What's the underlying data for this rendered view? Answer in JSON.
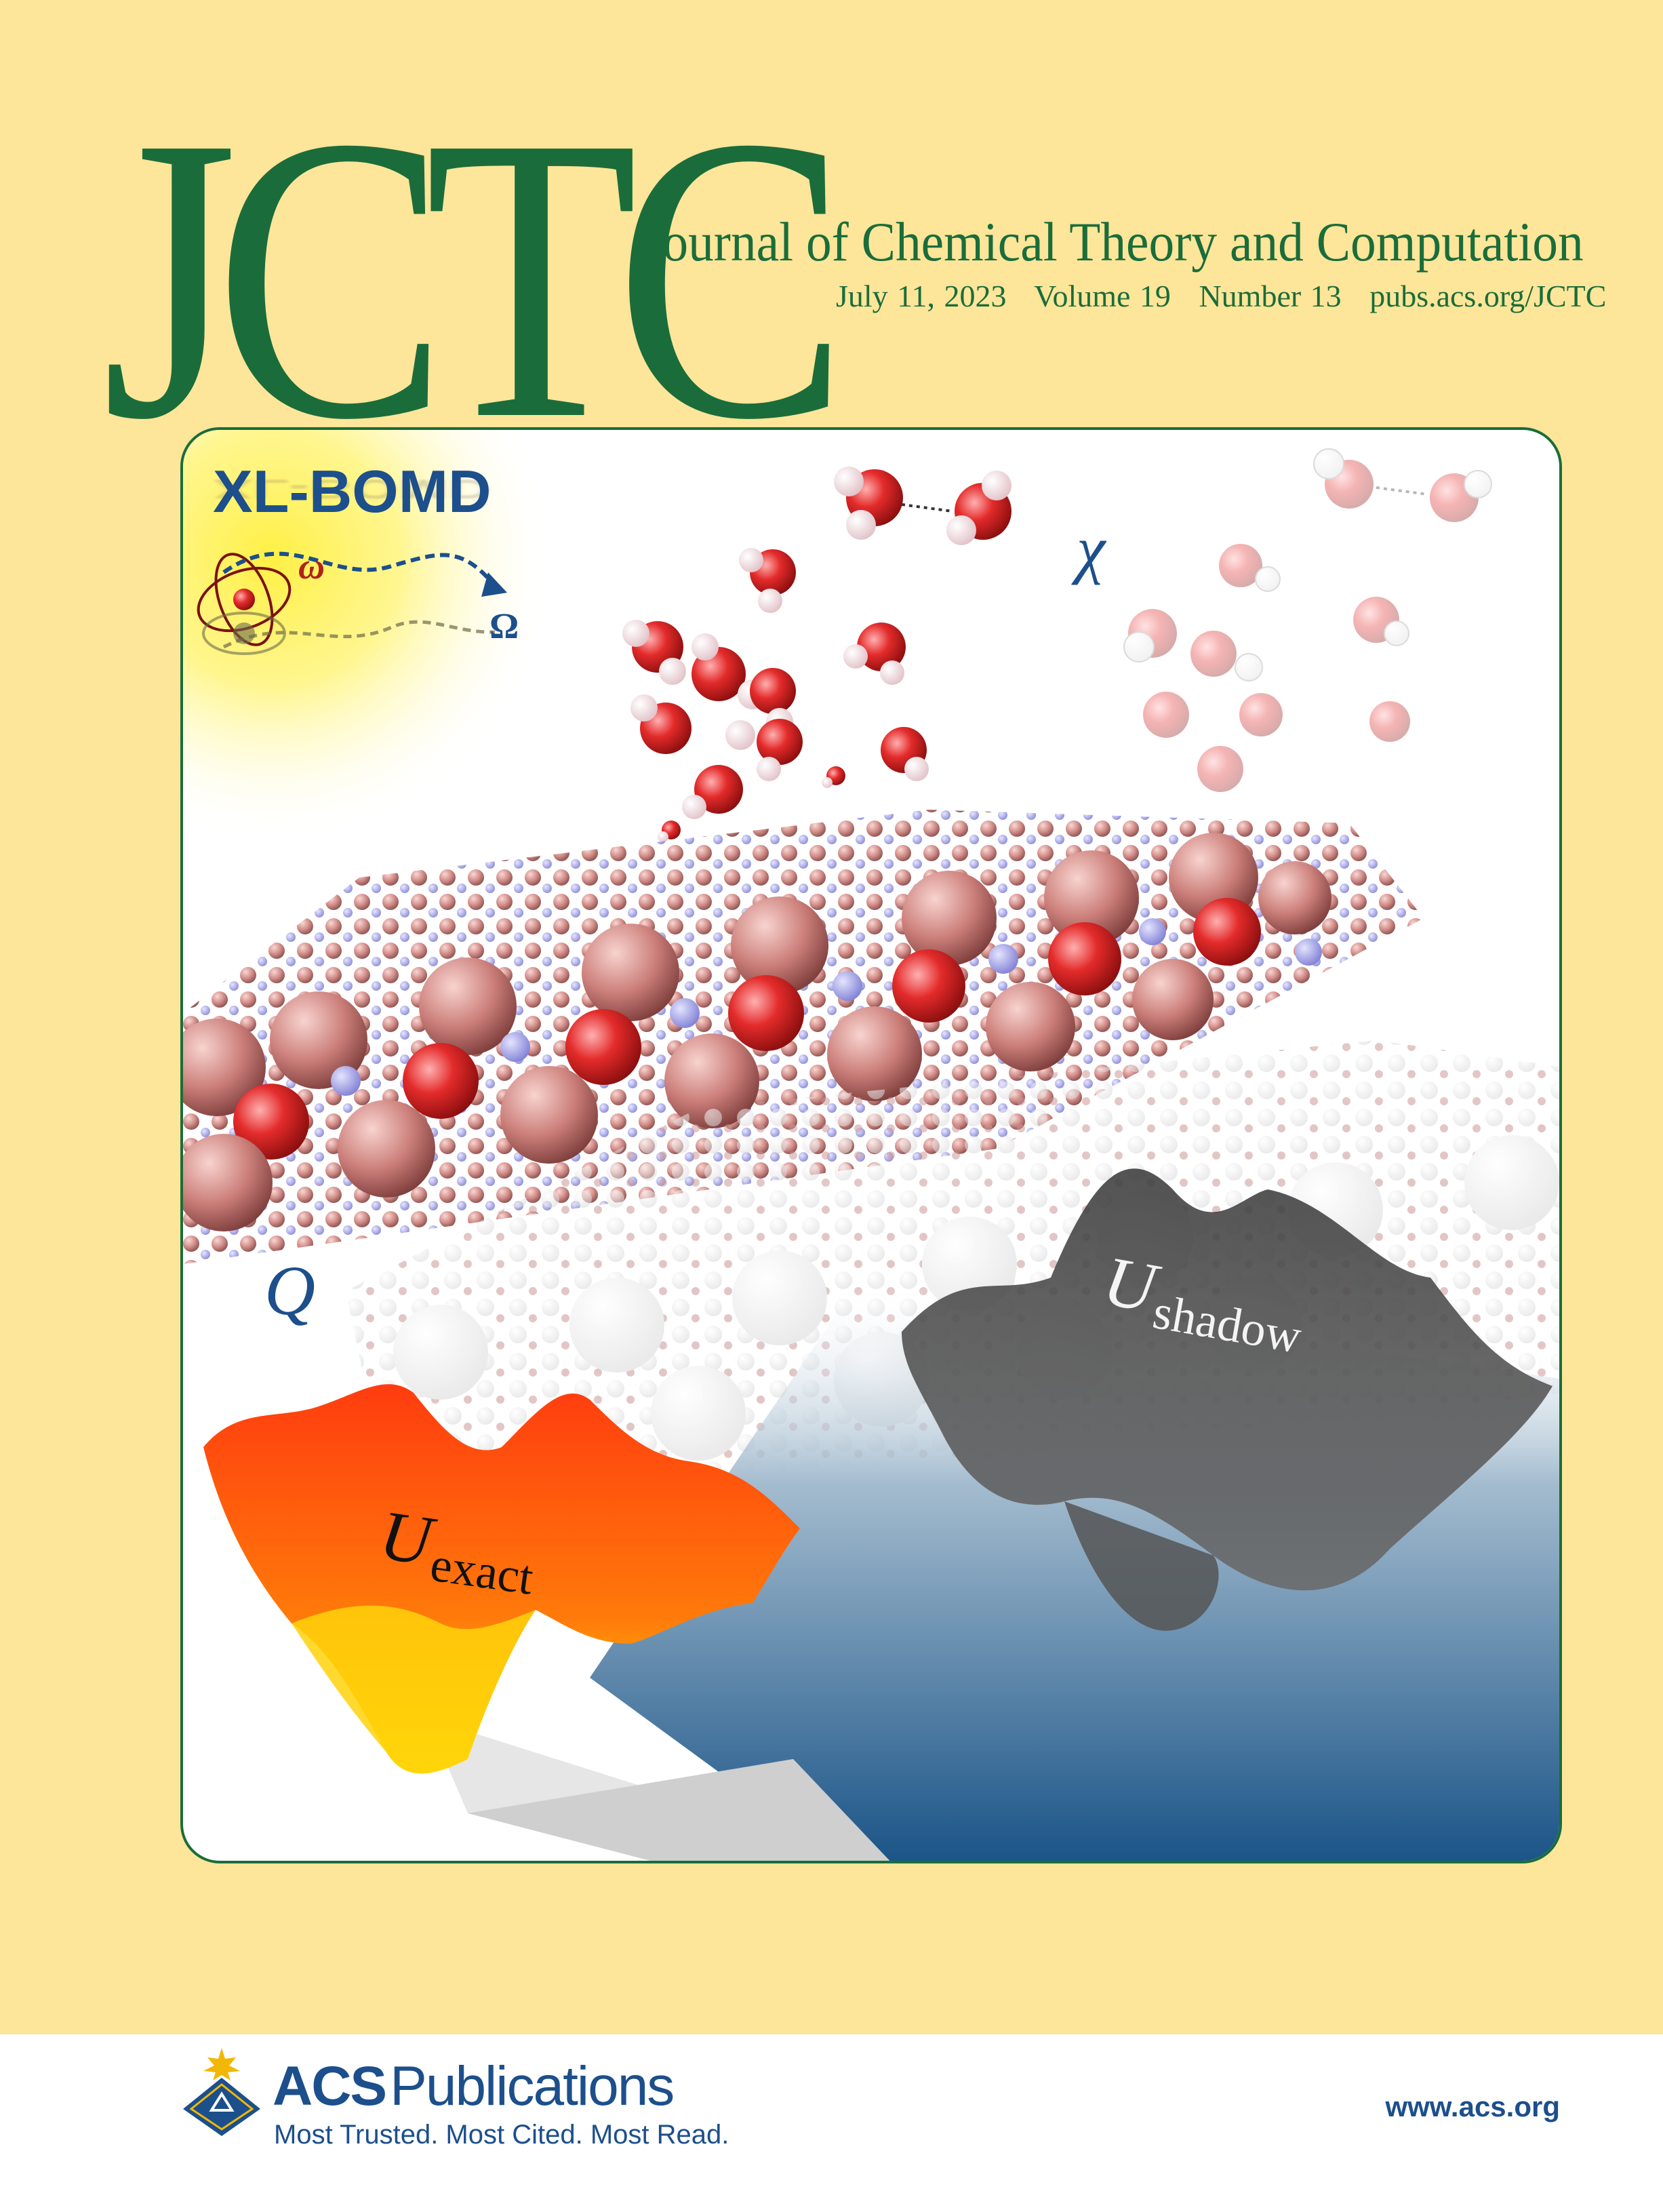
{
  "masthead": {
    "logo": "JCTC",
    "journal_title": "Journal of Chemical Theory and Computation",
    "issue": {
      "date": "July 11, 2023",
      "volume": "Volume 19",
      "number": "Number 13",
      "url": "pubs.acs.org/JCTC"
    }
  },
  "cover_art": {
    "method_label": "XL-BOMD",
    "omega_small": "ω",
    "omega_big": "Ω",
    "chi": "χ",
    "q": "Q",
    "u_exact": {
      "symbol": "U",
      "subscript": "exact"
    },
    "u_shadow": {
      "symbol": "U",
      "subscript": "shadow"
    }
  },
  "footer": {
    "publisher_bold": "ACS",
    "publisher_rest": "Publications",
    "tagline": "Most Trusted. Most Cited. Most Read.",
    "website": "www.acs.org"
  },
  "colors": {
    "background": "#fde59a",
    "brand_green": "#1a6d3a",
    "acs_blue": "#1c4f8c"
  }
}
